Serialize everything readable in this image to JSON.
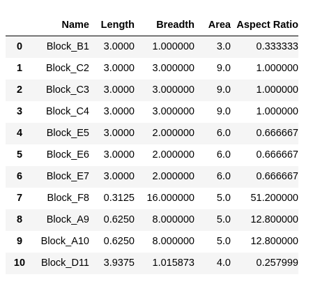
{
  "columns": [
    "",
    "Name",
    "Length",
    "Breadth",
    "Area",
    "Aspect Ratio"
  ],
  "rows": [
    [
      "0",
      "Block_B1",
      "3.0000",
      "1.000000",
      "3.0",
      "0.333333"
    ],
    [
      "1",
      "Block_C2",
      "3.0000",
      "3.000000",
      "9.0",
      "1.000000"
    ],
    [
      "2",
      "Block_C3",
      "3.0000",
      "3.000000",
      "9.0",
      "1.000000"
    ],
    [
      "3",
      "Block_C4",
      "3.0000",
      "3.000000",
      "9.0",
      "1.000000"
    ],
    [
      "4",
      "Block_E5",
      "3.0000",
      "2.000000",
      "6.0",
      "0.666667"
    ],
    [
      "5",
      "Block_E6",
      "3.0000",
      "2.000000",
      "6.0",
      "0.666667"
    ],
    [
      "6",
      "Block_E7",
      "3.0000",
      "2.000000",
      "6.0",
      "0.666667"
    ],
    [
      "7",
      "Block_F8",
      "0.3125",
      "16.000000",
      "5.0",
      "51.200000"
    ],
    [
      "8",
      "Block_A9",
      "0.6250",
      "8.000000",
      "5.0",
      "12.800000"
    ],
    [
      "9",
      "Block_A10",
      "0.6250",
      "8.000000",
      "5.0",
      "12.800000"
    ],
    [
      "10",
      "Block_D11",
      "3.9375",
      "1.015873",
      "4.0",
      "0.257999"
    ]
  ]
}
